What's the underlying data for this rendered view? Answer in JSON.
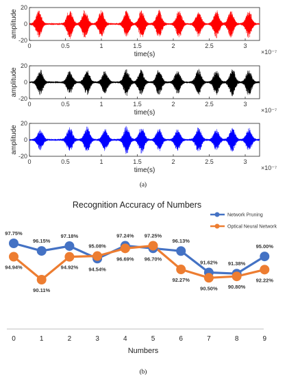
{
  "colors": {
    "panel1": "#ff0000",
    "panel2": "#000000",
    "panel3": "#0000ff",
    "pruning": "#4472c4",
    "optical": "#ed7d31"
  },
  "chart_data": [
    {
      "type": "line",
      "panel": "(a)",
      "signals": [
        {
          "color": "red",
          "xlabel": "time(s)",
          "ylabel": "amplitude",
          "x_multiplier": "×10⁻⁷",
          "xlim": [
            0,
            3.2
          ],
          "ylim": [
            -20,
            20
          ],
          "xticks": [
            "0",
            "0.5",
            "1",
            "1.5",
            "2",
            "2.5",
            "3"
          ],
          "yticks": [
            "20",
            "0",
            "-20"
          ],
          "bursts": [
            [
              0.13,
              16
            ],
            [
              0.56,
              18
            ],
            [
              0.77,
              17
            ],
            [
              1.0,
              16
            ],
            [
              1.35,
              16
            ],
            [
              1.56,
              17
            ],
            [
              1.8,
              17
            ],
            [
              2.08,
              17
            ],
            [
              2.35,
              16
            ],
            [
              2.6,
              17
            ],
            [
              2.8,
              16
            ],
            [
              3.05,
              17
            ]
          ]
        },
        {
          "color": "black",
          "xlabel": "time(s)",
          "ylabel": "amplitude",
          "x_multiplier": "×10⁻⁷",
          "xlim": [
            0,
            3.2
          ],
          "ylim": [
            -20,
            20
          ],
          "xticks": [
            "0",
            "0.5",
            "1",
            "1.5",
            "2",
            "2.5",
            "3"
          ],
          "yticks": [
            "20",
            "0",
            "-20"
          ],
          "bursts": [
            [
              0.15,
              15
            ],
            [
              0.56,
              14
            ],
            [
              0.8,
              15
            ],
            [
              1.05,
              14
            ],
            [
              1.35,
              16
            ],
            [
              1.55,
              15
            ],
            [
              1.8,
              15
            ],
            [
              2.06,
              14
            ],
            [
              2.35,
              16
            ],
            [
              2.6,
              15
            ],
            [
              2.82,
              17
            ],
            [
              3.05,
              16
            ]
          ]
        },
        {
          "color": "blue",
          "xlabel": "time(s)",
          "ylabel": "amplitude",
          "x_multiplier": "×10⁻⁷",
          "xlim": [
            0,
            3.2
          ],
          "ylim": [
            -20,
            20
          ],
          "xticks": [
            "0",
            "0.5",
            "1",
            "1.5",
            "2",
            "2.5",
            "3"
          ],
          "yticks": [
            "20",
            "0",
            "-20"
          ],
          "bursts": [
            [
              0.15,
              12
            ],
            [
              0.56,
              15
            ],
            [
              0.8,
              16
            ],
            [
              1.05,
              13
            ],
            [
              1.35,
              17
            ],
            [
              1.56,
              16
            ],
            [
              1.8,
              14
            ],
            [
              2.06,
              13
            ],
            [
              2.35,
              15
            ],
            [
              2.6,
              13
            ],
            [
              2.82,
              14
            ],
            [
              3.05,
              14
            ]
          ]
        }
      ]
    },
    {
      "type": "line",
      "panel": "(b)",
      "title": "Recognition Accuracy of Numbers",
      "xlabel": "Numbers",
      "categories": [
        "0",
        "1",
        "2",
        "3",
        "4",
        "5",
        "6",
        "7",
        "8",
        "9"
      ],
      "legend_position": "top-right",
      "series": [
        {
          "name": "Network Pruning",
          "values": [
            97.75,
            96.15,
            97.18,
            94.54,
            97.24,
            96.7,
            96.13,
            91.62,
            91.38,
            95.0
          ],
          "labels": [
            "97.75%",
            "96.15%",
            "97.18%",
            "94.54%",
            "97.24%",
            "96.70%",
            "96.13%",
            "91.62%",
            "91.38%",
            "95.00%"
          ]
        },
        {
          "name": "Optical Neural Network",
          "values": [
            94.94,
            90.11,
            94.92,
            95.08,
            96.69,
            97.25,
            92.27,
            90.5,
            90.8,
            92.22
          ],
          "labels": [
            "94.94%",
            "90.11%",
            "94.92%",
            "95.08%",
            "96.69%",
            "97.25%",
            "92.27%",
            "90.50%",
            "90.80%",
            "92.22%"
          ]
        }
      ]
    }
  ]
}
